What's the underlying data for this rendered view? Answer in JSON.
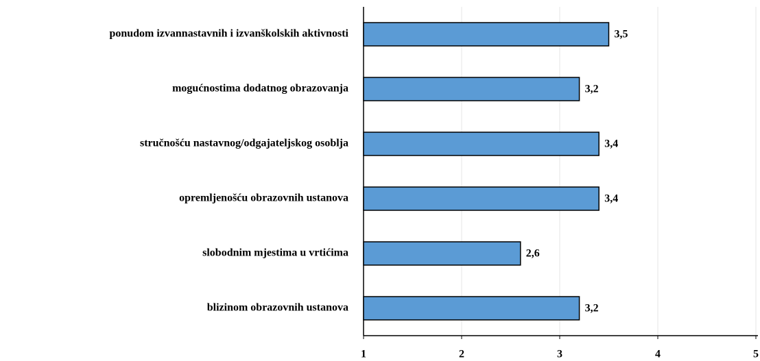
{
  "chart_data": {
    "type": "bar",
    "orientation": "horizontal",
    "categories": [
      "ponudom izvannastavnih i izvanškolskih aktivnosti",
      "mogućnostima dodatnog obrazovanja",
      "stručnošću nastavnog/odgajateljskog osoblja",
      "opremljenošću obrazovnih ustanova",
      "slobodnim mjestima u vrtićima",
      "blizinom obrazovnih ustanova"
    ],
    "values": [
      3.5,
      3.2,
      3.4,
      3.4,
      2.6,
      3.2
    ],
    "value_labels": [
      "3,5",
      "3,2",
      "3,4",
      "3,4",
      "2,6",
      "3,2"
    ],
    "color": "#5b9bd5",
    "xlim": [
      1,
      5
    ],
    "xticks": [
      1,
      2,
      3,
      4,
      5
    ],
    "grid": true
  }
}
